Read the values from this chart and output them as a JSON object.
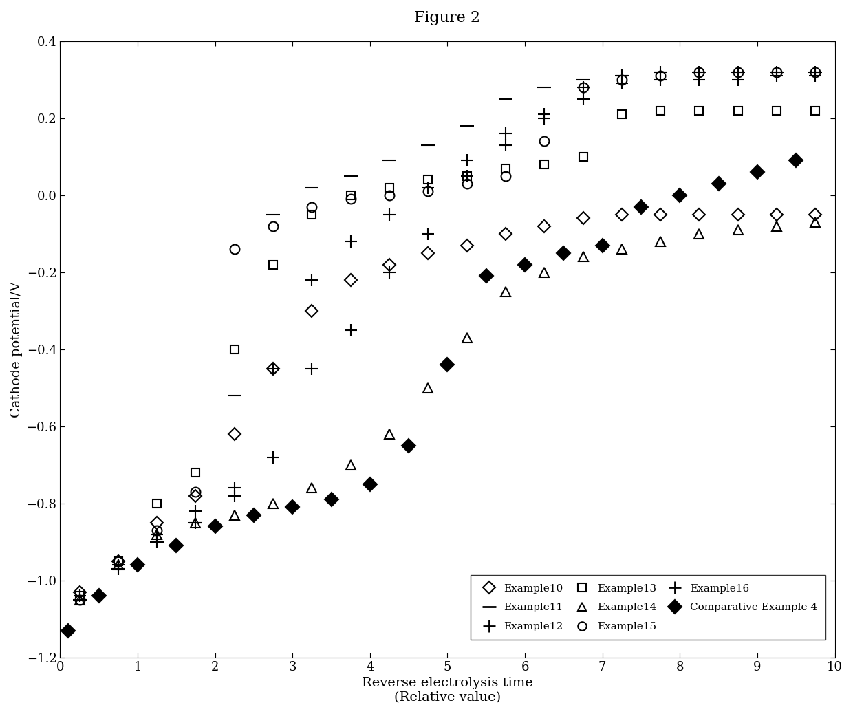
{
  "title": "Figure 2",
  "xlabel": "Reverse electrolysis time\n(Relative value)",
  "ylabel": "Cathode potential/V",
  "xlim": [
    0,
    10
  ],
  "ylim": [
    -1.2,
    0.4
  ],
  "xticks": [
    0,
    1,
    2,
    3,
    4,
    5,
    6,
    7,
    8,
    9,
    10
  ],
  "yticks": [
    -1.2,
    -1.0,
    -0.8,
    -0.6,
    -0.4,
    -0.2,
    0.0,
    0.2,
    0.4
  ],
  "series": [
    {
      "name": "Example10",
      "x": [
        0.25,
        0.75,
        1.25,
        1.75,
        2.25,
        2.75,
        3.25,
        3.75,
        4.25,
        4.75,
        5.25,
        5.75,
        6.25,
        6.75,
        7.25,
        7.75,
        8.25,
        8.75,
        9.25,
        9.75
      ],
      "y": [
        -1.03,
        -0.95,
        -0.85,
        -0.78,
        -0.62,
        -0.45,
        -0.3,
        -0.22,
        -0.18,
        -0.15,
        -0.13,
        -0.1,
        -0.08,
        -0.06,
        -0.05,
        -0.05,
        -0.05,
        -0.05,
        -0.05,
        -0.05
      ],
      "marker": "D",
      "fillstyle": "none",
      "ms": 9
    },
    {
      "name": "Example11",
      "x": [
        0.25,
        0.75,
        1.25,
        1.75,
        2.25,
        2.75,
        3.25,
        3.75,
        4.25,
        4.75,
        5.25,
        5.75,
        6.25,
        6.75,
        7.25,
        7.75,
        8.25,
        8.75,
        9.25,
        9.75
      ],
      "y": [
        -1.05,
        -0.97,
        -0.9,
        -0.85,
        -0.52,
        -0.05,
        0.02,
        0.05,
        0.09,
        0.13,
        0.18,
        0.25,
        0.28,
        0.3,
        0.31,
        0.32,
        0.32,
        0.32,
        0.32,
        0.32
      ],
      "marker": "_",
      "fillstyle": "full",
      "ms": 14
    },
    {
      "name": "Example12",
      "x": [
        0.25,
        0.75,
        1.25,
        1.75,
        2.25,
        2.75,
        3.25,
        3.75,
        4.25,
        4.75,
        5.25,
        5.75,
        6.25,
        6.75,
        7.25,
        7.75,
        8.25,
        8.75,
        9.25,
        9.75
      ],
      "y": [
        -1.04,
        -0.96,
        -0.88,
        -0.82,
        -0.76,
        -0.45,
        -0.22,
        -0.12,
        -0.05,
        0.02,
        0.09,
        0.16,
        0.21,
        0.28,
        0.31,
        0.32,
        0.32,
        0.32,
        0.32,
        0.32
      ],
      "marker": "+",
      "fillstyle": "full",
      "ms": 13
    },
    {
      "name": "Example13",
      "x": [
        0.25,
        0.75,
        1.25,
        1.75,
        2.25,
        2.75,
        3.25,
        3.75,
        4.25,
        4.75,
        5.25,
        5.75,
        6.25,
        6.75,
        7.25,
        7.75,
        8.25,
        8.75,
        9.25,
        9.75
      ],
      "y": [
        -1.04,
        -0.95,
        -0.8,
        -0.72,
        -0.4,
        -0.18,
        -0.05,
        0.0,
        0.02,
        0.04,
        0.05,
        0.07,
        0.08,
        0.1,
        0.21,
        0.22,
        0.22,
        0.22,
        0.22,
        0.22
      ],
      "marker": "s",
      "fillstyle": "none",
      "ms": 9
    },
    {
      "name": "Example14",
      "x": [
        0.25,
        0.75,
        1.25,
        1.75,
        2.25,
        2.75,
        3.25,
        3.75,
        4.25,
        4.75,
        5.25,
        5.75,
        6.25,
        6.75,
        7.25,
        7.75,
        8.25,
        8.75,
        9.25,
        9.75
      ],
      "y": [
        -1.05,
        -0.96,
        -0.88,
        -0.85,
        -0.83,
        -0.8,
        -0.76,
        -0.7,
        -0.62,
        -0.5,
        -0.37,
        -0.25,
        -0.2,
        -0.16,
        -0.14,
        -0.12,
        -0.1,
        -0.09,
        -0.08,
        -0.07
      ],
      "marker": "^",
      "fillstyle": "none",
      "ms": 10
    },
    {
      "name": "Example15",
      "x": [
        0.25,
        0.75,
        1.25,
        1.75,
        2.25,
        2.75,
        3.25,
        3.75,
        4.25,
        4.75,
        5.25,
        5.75,
        6.25,
        6.75,
        7.25,
        7.75,
        8.25,
        8.75,
        9.25,
        9.75
      ],
      "y": [
        -1.05,
        -0.95,
        -0.87,
        -0.77,
        -0.14,
        -0.08,
        -0.03,
        -0.01,
        0.0,
        0.01,
        0.03,
        0.05,
        0.14,
        0.28,
        0.3,
        0.31,
        0.32,
        0.32,
        0.32,
        0.32
      ],
      "marker": "o",
      "fillstyle": "none",
      "ms": 10
    },
    {
      "name": "Example16",
      "x": [
        0.25,
        0.75,
        1.25,
        1.75,
        2.25,
        2.75,
        3.25,
        3.75,
        4.25,
        4.75,
        5.25,
        5.75,
        6.25,
        6.75,
        7.25,
        7.75,
        8.25,
        8.75,
        9.25,
        9.75
      ],
      "y": [
        -1.04,
        -0.97,
        -0.9,
        -0.85,
        -0.78,
        -0.68,
        -0.45,
        -0.35,
        -0.2,
        -0.1,
        0.05,
        0.13,
        0.2,
        0.25,
        0.29,
        0.3,
        0.3,
        0.3,
        0.31,
        0.31
      ],
      "marker": "+",
      "fillstyle": "none",
      "ms": 13
    },
    {
      "name": "Comparative Example 4",
      "x": [
        0.1,
        0.5,
        1.0,
        1.5,
        2.0,
        2.5,
        3.0,
        3.5,
        4.0,
        4.5,
        5.0,
        5.5,
        6.0,
        6.5,
        7.0,
        7.5,
        8.0,
        8.5,
        9.0,
        9.5
      ],
      "y": [
        -1.13,
        -1.04,
        -0.96,
        -0.91,
        -0.86,
        -0.83,
        -0.81,
        -0.79,
        -0.75,
        -0.65,
        -0.44,
        -0.21,
        -0.18,
        -0.15,
        -0.13,
        -0.03,
        0.0,
        0.03,
        0.06,
        0.09
      ],
      "marker": "D",
      "fillstyle": "full",
      "ms": 10
    }
  ],
  "legend": [
    {
      "label": "Example10",
      "marker": "D",
      "fillstyle": "none",
      "ms": 9,
      "mew": 1.5
    },
    {
      "label": "Example11",
      "marker": "_",
      "fillstyle": "full",
      "ms": 14,
      "mew": 2.0
    },
    {
      "label": "Example12",
      "marker": "+",
      "fillstyle": "full",
      "ms": 13,
      "mew": 2.0
    },
    {
      "label": "Example13",
      "marker": "s",
      "fillstyle": "none",
      "ms": 9,
      "mew": 1.5
    },
    {
      "label": "Example14",
      "marker": "^",
      "fillstyle": "none",
      "ms": 9,
      "mew": 1.5
    },
    {
      "label": "Example15",
      "marker": "o",
      "fillstyle": "none",
      "ms": 9,
      "mew": 1.5
    },
    {
      "label": "Example16",
      "marker": "+",
      "fillstyle": "full",
      "ms": 13,
      "mew": 2.0
    },
    {
      "label": "Comparative Example 4",
      "marker": "D",
      "fillstyle": "full",
      "ms": 10,
      "mew": 1.5
    }
  ]
}
